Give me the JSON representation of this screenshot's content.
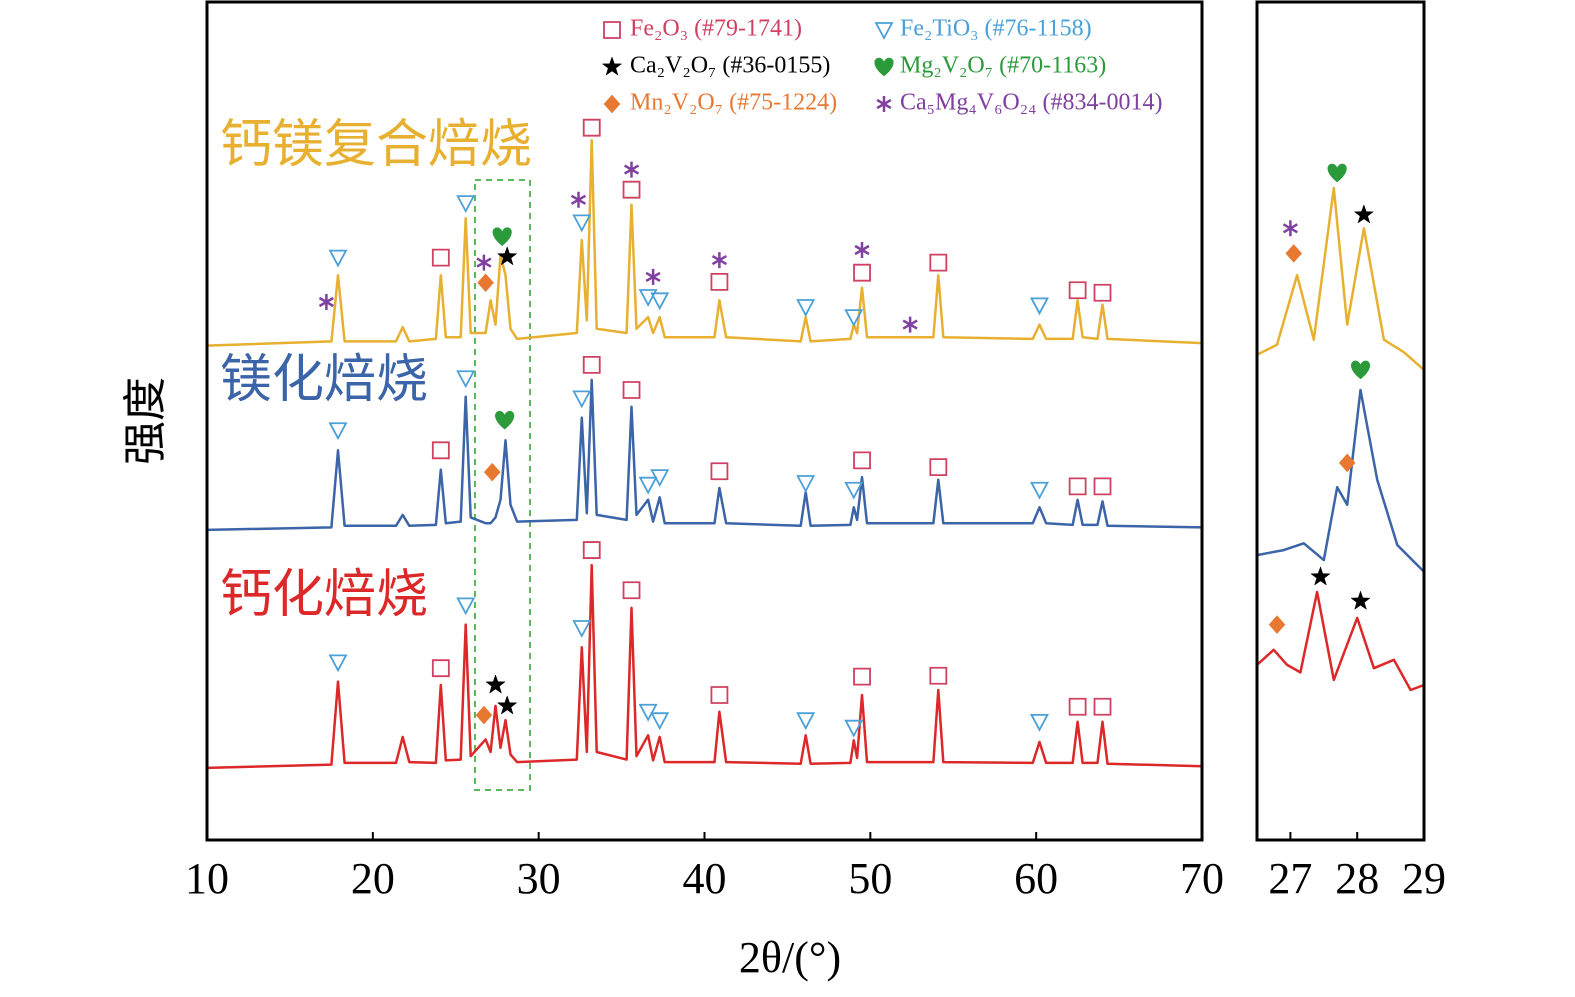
{
  "chart_data": [
    {
      "type": "line",
      "xlabel": "2θ/(°)",
      "ylabel": "强度",
      "xlim": [
        10,
        70
      ],
      "xticks": [
        10,
        20,
        30,
        40,
        50,
        60,
        70
      ],
      "ylim": [
        0,
        100
      ],
      "x": [
        10,
        17.5,
        17.9,
        18.3,
        21.4,
        21.8,
        22.2,
        23.8,
        24.1,
        24.4,
        25.3,
        25.6,
        25.9,
        26.8,
        27.1,
        27.4,
        27.7,
        28.0,
        28.3,
        28.7,
        32.3,
        32.6,
        32.9,
        33.2,
        33.5,
        35.3,
        35.6,
        35.9,
        36.6,
        36.9,
        37.3,
        37.6,
        40.6,
        40.9,
        41.3,
        45.8,
        46.1,
        46.4,
        48.8,
        49.0,
        49.2,
        49.5,
        49.8,
        53.8,
        54.1,
        54.4,
        59.8,
        60.2,
        60.6,
        62.2,
        62.5,
        62.8,
        63.7,
        64.0,
        64.3,
        70
      ],
      "series": [
        {
          "name": "钙镁复合焙烧",
          "color": "#e8b030",
          "values": [
            59,
            59.5,
            67.4,
            59.5,
            59.5,
            61.2,
            59.5,
            59.8,
            67.4,
            60,
            60,
            74.2,
            60.5,
            60.5,
            64.4,
            61.5,
            69.8,
            67.4,
            61,
            59.8,
            60.5,
            71.6,
            62,
            83.5,
            61,
            60.5,
            75.8,
            61,
            62.4,
            60.5,
            62.4,
            60,
            60,
            64.4,
            60,
            59.5,
            62.4,
            59.5,
            59.8,
            61.5,
            60.5,
            65.9,
            60,
            60,
            67.4,
            60,
            59.8,
            61.5,
            59.8,
            59.8,
            64.4,
            60,
            59.8,
            63.9,
            59.8,
            59.3
          ]
        },
        {
          "name": "镁化焙烧",
          "color": "#3c64a8",
          "values": [
            37,
            37.3,
            46.5,
            37.5,
            37.5,
            38.8,
            37.5,
            37.6,
            44.2,
            37.8,
            38,
            52.9,
            38.5,
            37.8,
            37.8,
            38.5,
            40.6,
            47.7,
            40,
            38,
            38.2,
            50.4,
            39,
            54.9,
            38.8,
            38.2,
            51.7,
            38.8,
            40.6,
            38,
            40.9,
            37.8,
            37.8,
            42,
            37.8,
            37.5,
            41.5,
            37.5,
            37.6,
            39.7,
            38.2,
            43.3,
            37.8,
            37.8,
            43,
            37.8,
            37.8,
            39.7,
            37.8,
            37.6,
            40.6,
            37.6,
            37.6,
            40.4,
            37.5,
            37.3
          ]
        },
        {
          "name": "钙化焙烧",
          "color": "#dc2828",
          "values": [
            8.6,
            9,
            18.9,
            9.2,
            9.2,
            12.3,
            9.3,
            9.2,
            18.5,
            9.5,
            9.6,
            25.7,
            10,
            12,
            10.5,
            16,
            11,
            14.3,
            10.2,
            9.3,
            9.6,
            23,
            10.5,
            32.8,
            10.5,
            9.6,
            27.7,
            10,
            12.5,
            9.5,
            12.3,
            9.3,
            9.3,
            15.3,
            9.3,
            9.1,
            12.5,
            9.1,
            9.2,
            11.9,
            9.8,
            17.3,
            9.3,
            9.3,
            17.9,
            9.3,
            9.2,
            11.7,
            9.2,
            9.2,
            14.1,
            9.2,
            9.2,
            14.1,
            9.1,
            8.8
          ]
        }
      ],
      "phases": [
        {
          "name": "Fe₂O₃ (#79-1741)",
          "color": "#d04060",
          "symbol": "square"
        },
        {
          "name": "Fe₂TiO₃ (#76-1158)",
          "color": "#4aa0d8",
          "symbol": "triangle"
        },
        {
          "name": "Ca₂V₂O₇ (#36-0155)",
          "color": "#000000",
          "symbol": "star"
        },
        {
          "name": "Mg₂V₂O₇ (#70-1163)",
          "color": "#2a9a3a",
          "symbol": "heart"
        },
        {
          "name": "Mn₂V₂O₇ (#75-1224)",
          "color": "#e87830",
          "symbol": "diamond"
        },
        {
          "name": "Ca₅Mg₄V₆O₂₄ (#834-0014)",
          "color": "#8040a0",
          "symbol": "asterisk"
        }
      ],
      "markers": [
        {
          "x": [
            24.1,
            33.2,
            35.6,
            40.9,
            49.5,
            54.1,
            62.5,
            64.0,
            24.1,
            33.2,
            35.6,
            40.9,
            49.5,
            54.1,
            62.5,
            64.0,
            24.1,
            33.2,
            35.6,
            40.9,
            49.5,
            54.1,
            62.5,
            64.0
          ],
          "y": [
            69.5,
            85,
            77.6,
            66.6,
            67.7,
            68.9,
            65.6,
            65.3,
            46.5,
            56.7,
            53.7,
            44,
            45.3,
            44.5,
            42.2,
            42.2,
            20.5,
            34.6,
            29.8,
            17.3,
            19.5,
            19.6,
            15.9,
            15.9
          ]
        },
        {
          "x": [
            17.9,
            25.6,
            32.6,
            36.6,
            37.3,
            46.1,
            49,
            60.2,
            17.9,
            25.6,
            32.6,
            36.6,
            37.3,
            46.1,
            49,
            60.2,
            17.9,
            25.6,
            32.6,
            36.6,
            37.3,
            46.1,
            49,
            60.2
          ],
          "y": [
            69.5,
            76,
            73.7,
            64.8,
            64.4,
            63.6,
            62.4,
            63.8,
            48.9,
            55.1,
            52.7,
            42.4,
            43.3,
            42.6,
            41.8,
            41.8,
            21.2,
            28,
            25.3,
            15.3,
            14.3,
            14.3,
            13.4,
            14.1
          ]
        },
        {
          "x": [
            28.1,
            27.4,
            28.1
          ],
          "y": [
            69.6,
            18.5,
            16
          ]
        },
        {
          "x": [
            27.8,
            27.95
          ],
          "y": [
            72,
            50.1
          ]
        },
        {
          "x": [
            26.8,
            27.2,
            26.7
          ],
          "y": [
            66.5,
            43.9,
            14.9
          ]
        },
        {
          "x": [
            17.2,
            26.7,
            32.4,
            35.6,
            36.9,
            40.9,
            49.5,
            52.4
          ],
          "y": [
            64.2,
            68.9,
            76.4,
            80,
            67.2,
            69.2,
            70.4,
            61.5
          ]
        }
      ]
    },
    {
      "type": "line",
      "xlim": [
        26.5,
        29
      ],
      "xticks": [
        27,
        28,
        29
      ],
      "ylim": [
        0,
        100
      ],
      "series": [
        {
          "color": "#e8b030",
          "x": [
            26.5,
            26.8,
            27.1,
            27.35,
            27.65,
            27.85,
            28.1,
            28.4,
            28.7,
            29
          ],
          "values": [
            57.9,
            59.1,
            67.4,
            59.7,
            77.8,
            61.5,
            73,
            59.7,
            58.2,
            56.1
          ]
        },
        {
          "color": "#3c64a8",
          "x": [
            26.5,
            26.9,
            27.2,
            27.5,
            27.7,
            27.85,
            28.05,
            28.3,
            28.6,
            29
          ],
          "values": [
            34,
            34.6,
            35.4,
            33.4,
            42.1,
            40,
            53.7,
            43,
            35.2,
            32
          ]
        },
        {
          "color": "#dc2828",
          "x": [
            26.5,
            26.75,
            26.95,
            27.15,
            27.4,
            27.65,
            28.0,
            28.25,
            28.55,
            28.8,
            29
          ],
          "values": [
            20.9,
            22.7,
            20.9,
            20,
            29.6,
            19.1,
            26.5,
            20.5,
            21.5,
            17.9,
            18.5
          ]
        }
      ],
      "markers": [
        {
          "x": [],
          "y": []
        },
        {
          "x": [],
          "y": []
        },
        {
          "x": [
            28.1,
            27.45,
            28.05
          ],
          "y": [
            74.6,
            31.4,
            28.5
          ]
        },
        {
          "x": [
            27.7,
            28.05
          ],
          "y": [
            79.6,
            56.1
          ]
        },
        {
          "x": [
            27.05,
            27.85,
            26.8
          ],
          "y": [
            70,
            45,
            25.7
          ]
        },
        {
          "x": [
            27.0
          ],
          "y": [
            73
          ]
        }
      ]
    }
  ]
}
